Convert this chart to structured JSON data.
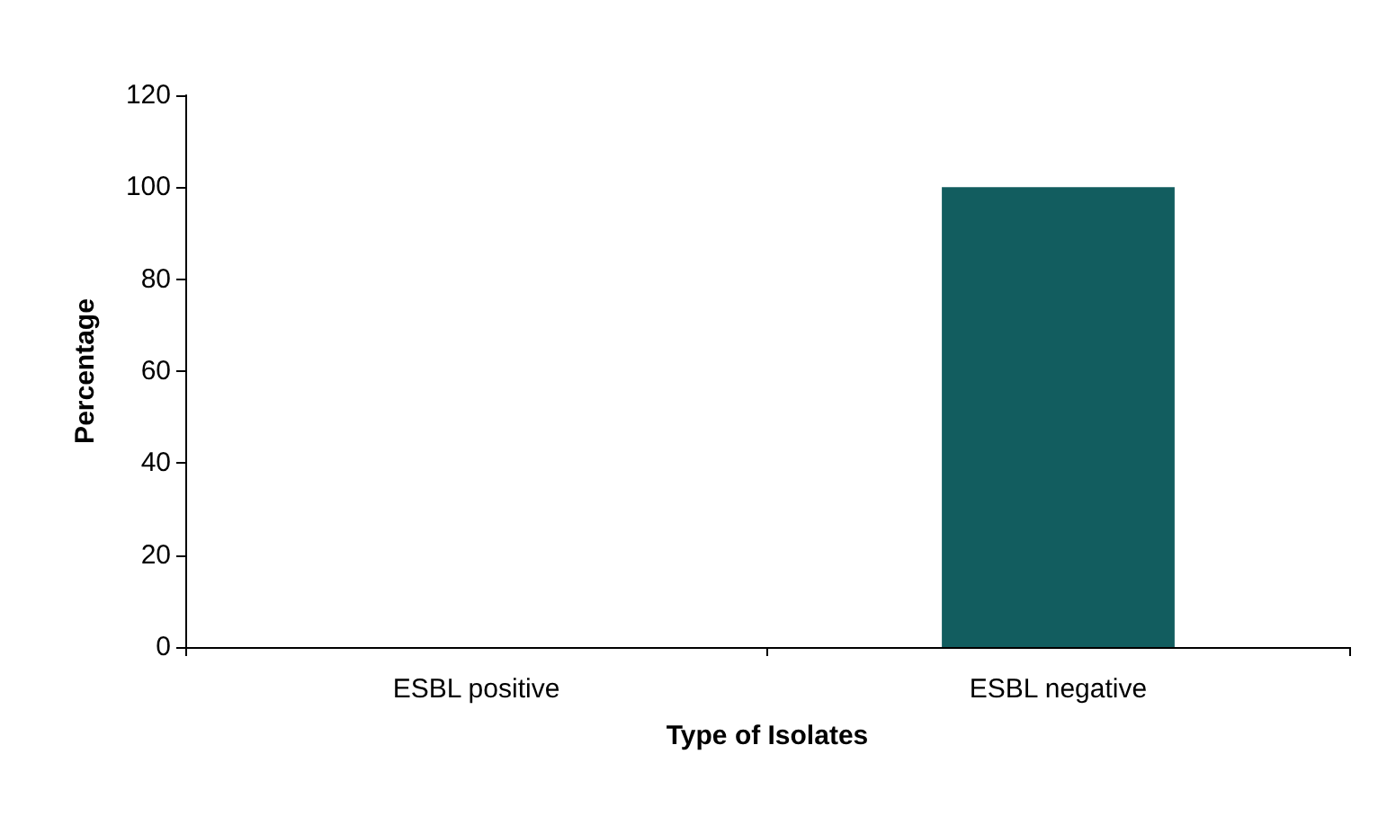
{
  "chart_data": {
    "type": "bar",
    "xlabel": "Type of Isolates",
    "ylabel": "Percentage",
    "categories": [
      "ESBL positive",
      "ESBL negative"
    ],
    "values": [
      0,
      100
    ],
    "color": "#125d5f",
    "ylim": [
      0,
      120
    ],
    "yticks": [
      0,
      20,
      40,
      60,
      80,
      100,
      120
    ],
    "grid": false
  }
}
